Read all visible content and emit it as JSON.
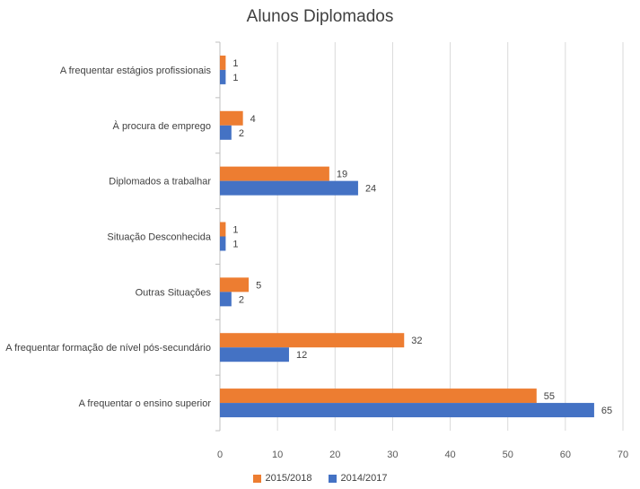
{
  "chart_data": {
    "type": "bar",
    "orientation": "horizontal",
    "title": "Alunos Diplomados",
    "categories": [
      "A frequentar estágios profissionais",
      "À procura de emprego",
      "Diplomados a trabalhar",
      "Situação Desconhecida",
      "Outras Situações",
      "A frequentar formação de nível pós-secundário",
      "A frequentar o ensino superior"
    ],
    "series": [
      {
        "name": "2015/2018",
        "color": "#ED7D31",
        "values": [
          1,
          4,
          19,
          1,
          5,
          32,
          55
        ]
      },
      {
        "name": "2014/2017",
        "color": "#4472C4",
        "values": [
          1,
          2,
          24,
          1,
          2,
          12,
          65
        ]
      }
    ],
    "xlim": [
      0,
      70
    ],
    "xticks": [
      0,
      10,
      20,
      30,
      40,
      50,
      60,
      70
    ],
    "grid": true,
    "legend": "bottom",
    "legend_order": [
      "2015/2018",
      "2014/2017"
    ]
  }
}
